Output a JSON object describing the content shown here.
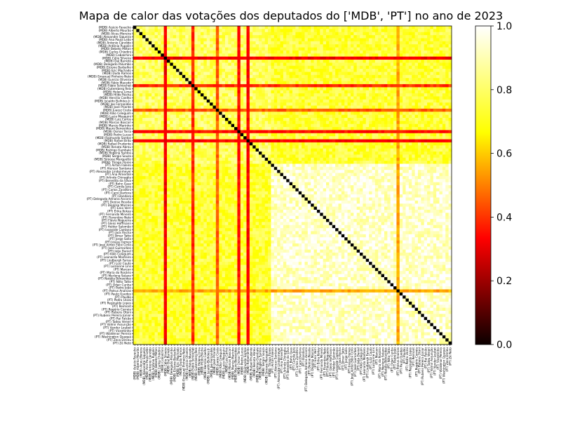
{
  "chart_data": {
    "type": "heatmap",
    "title": "Mapa de calor das votações dos deputados do ['MDB', 'PT'] no ano de 2023",
    "colormap": "hot",
    "row_labels": [
      "(MDB) Acácio Favacho",
      "(MDB) Alberto Mourão",
      "(MDB) Alceu Moreira",
      "(MDB) Alexandre Siqueira",
      "(MDB) Ana Paula Leão",
      "(MDB) Antonio Cândido",
      "(MDB) Antônio Pupolin",
      "(MDB) Bebeto Milton",
      "(MDB) Carlos Chiodini",
      "(MDB) Cobalchini",
      "(MDB) Célio Silveira",
      "(MDB) Dal Barreto",
      "(MDB) Delegado Palumbo",
      "(MDB) Elcione Barbalho",
      "(MDB) Eric Machado",
      "(MDB) Duda Ramos",
      "(MDB) Emanuel Pinheiro Neto",
      "(MDB) Eunício Oliveira",
      "(MDB) Fábio Macedo",
      "(MDB) Fábio Schiochet",
      "(MDB) Gutemberg Reis",
      "(MDB) Helena Lima",
      "(MDB) Hildo Rocha",
      "(MDB) Hercílio Coelho",
      "(MDB) Isnaldo Bulhões Jr.",
      "(MDB) Joe Fernandes",
      "(MDB) José Priante",
      "(MDB) Juarez Costa",
      "(MDB) Kiko Celeguim",
      "(MDB) Lucio Mosquini",
      "(MDB) Luiz Carlos",
      "(MDB) Marcos Boscari",
      "(MDB) Marcio Marinho",
      "(MDB) Mauro Benevides",
      "(MDB) Osmar Terra",
      "(MDB) Pedro Lucas",
      "(MDB) Raimundo Santos",
      "(MDB) Rafael Brito",
      "(MDB) Rafael Prudente",
      "(MDB) Renata Abreu",
      "(MDB) Rodrigo Gambale",
      "(MDB) Rogéria Santos",
      "(MDB) Sergio Souza",
      "(MDB) Simone Marquetto",
      "(MDB) Thiago Flores",
      "(PT) Airton Faleiro",
      "(PT) Alencar Santana",
      "(PT) Alexandre Lindenmeyer",
      "(PT) Ana Pimentel",
      "(PT) Arlindo Chinaglia",
      "(PT) Benedita da Silva",
      "(PT) Bohn Gass",
      "(PT) Camila Jara",
      "(PT) Carlos Zarattini",
      "(PT) Carol Dartora",
      "(PT) Dandara",
      "(PT) Delegada Adriana Accorsi",
      "(PT) Denise Pessôa",
      "(PT) Dionilso Marcon",
      "(PT) Enio Verri",
      "(PT) Erika Kokay",
      "(PT) Fernando Mineiro",
      "(PT) Florentino Neto",
      "(PT) Flávio Nogueira",
      "(PT) Gleisi Hoffmann",
      "(PT) Helder Salomão",
      "(PT) Ivoneide Caetano",
      "(PT) Jack Rocha",
      "(PT) Jilmar Tatto",
      "(PT) Jorge Solla",
      "(PT) Josias Gomes",
      "(PT) José Airton Félix Cirilo",
      "(PT) José Guimarães",
      "(PT) João Daniel",
      "(PT) Kiko Celeguim",
      "(PT) Leonardo Monteiro",
      "(PT) Lindbergh Farias",
      "(PT) Luiz Couto",
      "(PT) Luizianne Lins",
      "(PT) Marcon",
      "(PT) Maria do Rosário",
      "(PT) Merlong Solano",
      "(PT) Natália Bonavides",
      "(PT) Nilto Tatto",
      "(PT) Odair Cunha",
      "(PT) Padre João",
      "(PT) Patrus Ananias",
      "(PT) Paulo Guedes",
      "(PT) Paulão",
      "(PT) Pedro Uczai",
      "(PT) Reginaldo Lopes",
      "(PT) Reimont",
      "(PT) Rogério Correia",
      "(PT) Rubens Otoni",
      "(PT) Rubens Pereira Júnior",
      "(PT) Rui Falcão",
      "(PT) Tadeu Veneri",
      "(PT) Valmir Assunção",
      "(PT) Vander Loubet",
      "(PT) Vicentinho",
      "(PT) Waldenor Pereira",
      "(PT) Washington Quaquá",
      "(PT) Zeca Dirceu",
      "(PT) Zé Neto"
    ],
    "col_labels_same_as_rows": true,
    "rows": 104,
    "cols": 104,
    "value_range": [
      0.0,
      1.0
    ],
    "diagonal_value": 1.0,
    "block_values": {
      "mdb_vs_mdb": 0.84,
      "pt_vs_pt": 0.95,
      "mdb_vs_pt": 0.8
    },
    "low_agreement_rows": [
      {
        "label": "(MDB) Célio Silveira",
        "value": 0.28
      },
      {
        "label": "(MDB) Fábio Schiochet",
        "value": 0.38
      },
      {
        "label": "(MDB) Juarez Costa",
        "value": 0.45
      },
      {
        "label": "(MDB) Osmar Terra",
        "value": 0.32
      },
      {
        "label": "(MDB) Rafael Brito",
        "value": 0.3
      },
      {
        "label": "(PT) Patrus Ananias",
        "value": 0.55
      }
    ],
    "colorbar": {
      "min": 0.0,
      "max": 1.0,
      "ticks": [
        "0.0",
        "0.2",
        "0.4",
        "0.6",
        "0.8",
        "1.0"
      ]
    }
  }
}
